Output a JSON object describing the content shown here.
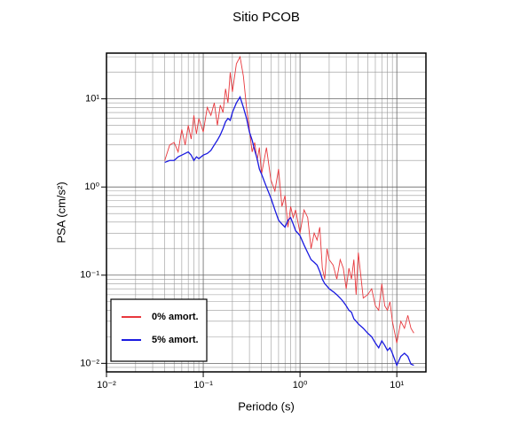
{
  "chart_data": {
    "type": "line",
    "title": "Sitio PCOB",
    "xlabel": "Periodo (s)",
    "ylabel": "PSA (cm/s²)",
    "xscale": "log",
    "yscale": "log",
    "grid": true,
    "minor_grid": true,
    "legend": "lower left",
    "xlim": [
      0.01,
      20
    ],
    "ylim": [
      0.008,
      33
    ],
    "xticks": [
      {
        "value": 0.01,
        "label": "10⁻²"
      },
      {
        "value": 0.1,
        "label": "10⁻¹"
      },
      {
        "value": 1,
        "label": "10⁰"
      },
      {
        "value": 10,
        "label": "10¹"
      }
    ],
    "yticks": [
      {
        "value": 0.01,
        "label": "10⁻²"
      },
      {
        "value": 0.1,
        "label": "10⁻¹"
      },
      {
        "value": 1,
        "label": "10⁰"
      },
      {
        "value": 10,
        "label": "10¹"
      }
    ],
    "x": [
      0.04,
      0.045,
      0.05,
      0.055,
      0.06,
      0.065,
      0.07,
      0.075,
      0.08,
      0.085,
      0.09,
      0.1,
      0.11,
      0.12,
      0.13,
      0.14,
      0.15,
      0.16,
      0.17,
      0.18,
      0.19,
      0.2,
      0.22,
      0.24,
      0.26,
      0.28,
      0.3,
      0.32,
      0.34,
      0.36,
      0.38,
      0.4,
      0.45,
      0.5,
      0.55,
      0.6,
      0.65,
      0.7,
      0.75,
      0.8,
      0.85,
      0.9,
      1.0,
      1.1,
      1.2,
      1.3,
      1.4,
      1.5,
      1.6,
      1.7,
      1.8,
      1.9,
      2.0,
      2.2,
      2.4,
      2.6,
      2.8,
      3.0,
      3.2,
      3.4,
      3.6,
      3.8,
      4.0,
      4.5,
      5,
      5.5,
      6,
      6.5,
      7,
      7.5,
      8,
      8.5,
      9,
      10,
      11,
      12,
      13,
      14,
      15
    ],
    "series": [
      {
        "name": "0% amort.",
        "color": "#e8383d",
        "values": [
          2.0,
          3.0,
          3.2,
          2.5,
          4.5,
          3.0,
          5.0,
          3.5,
          6.5,
          4.0,
          6.0,
          4.2,
          8.0,
          6.5,
          9.0,
          5.0,
          8.5,
          7.0,
          13,
          9,
          20,
          12,
          25,
          30,
          18,
          8,
          4.5,
          2.5,
          3.2,
          2.0,
          2.8,
          1.4,
          2.8,
          1.2,
          0.9,
          1.6,
          0.6,
          0.8,
          0.35,
          0.6,
          0.45,
          0.55,
          0.3,
          0.55,
          0.45,
          0.2,
          0.3,
          0.25,
          0.35,
          0.12,
          0.09,
          0.2,
          0.15,
          0.13,
          0.09,
          0.15,
          0.12,
          0.07,
          0.12,
          0.09,
          0.15,
          0.06,
          0.18,
          0.055,
          0.06,
          0.07,
          0.045,
          0.04,
          0.08,
          0.045,
          0.04,
          0.05,
          0.03,
          0.017,
          0.03,
          0.025,
          0.035,
          0.025,
          0.022
        ]
      },
      {
        "name": "5% amort.",
        "color": "#1a1ae0",
        "values": [
          1.9,
          2.0,
          2.0,
          2.2,
          2.3,
          2.4,
          2.5,
          2.3,
          2.0,
          2.2,
          2.1,
          2.3,
          2.4,
          2.6,
          3.0,
          3.4,
          3.9,
          4.6,
          5.5,
          6.0,
          5.7,
          7,
          9,
          10.5,
          8,
          6,
          4.2,
          3.4,
          2.6,
          2.1,
          1.6,
          1.4,
          1.0,
          0.75,
          0.55,
          0.42,
          0.38,
          0.35,
          0.42,
          0.45,
          0.38,
          0.32,
          0.28,
          0.22,
          0.18,
          0.15,
          0.14,
          0.13,
          0.11,
          0.09,
          0.08,
          0.075,
          0.07,
          0.065,
          0.06,
          0.055,
          0.05,
          0.045,
          0.04,
          0.038,
          0.032,
          0.03,
          0.028,
          0.025,
          0.022,
          0.02,
          0.017,
          0.015,
          0.018,
          0.016,
          0.014,
          0.015,
          0.013,
          0.0095,
          0.012,
          0.013,
          0.012,
          0.0098,
          0.0095
        ]
      }
    ]
  }
}
